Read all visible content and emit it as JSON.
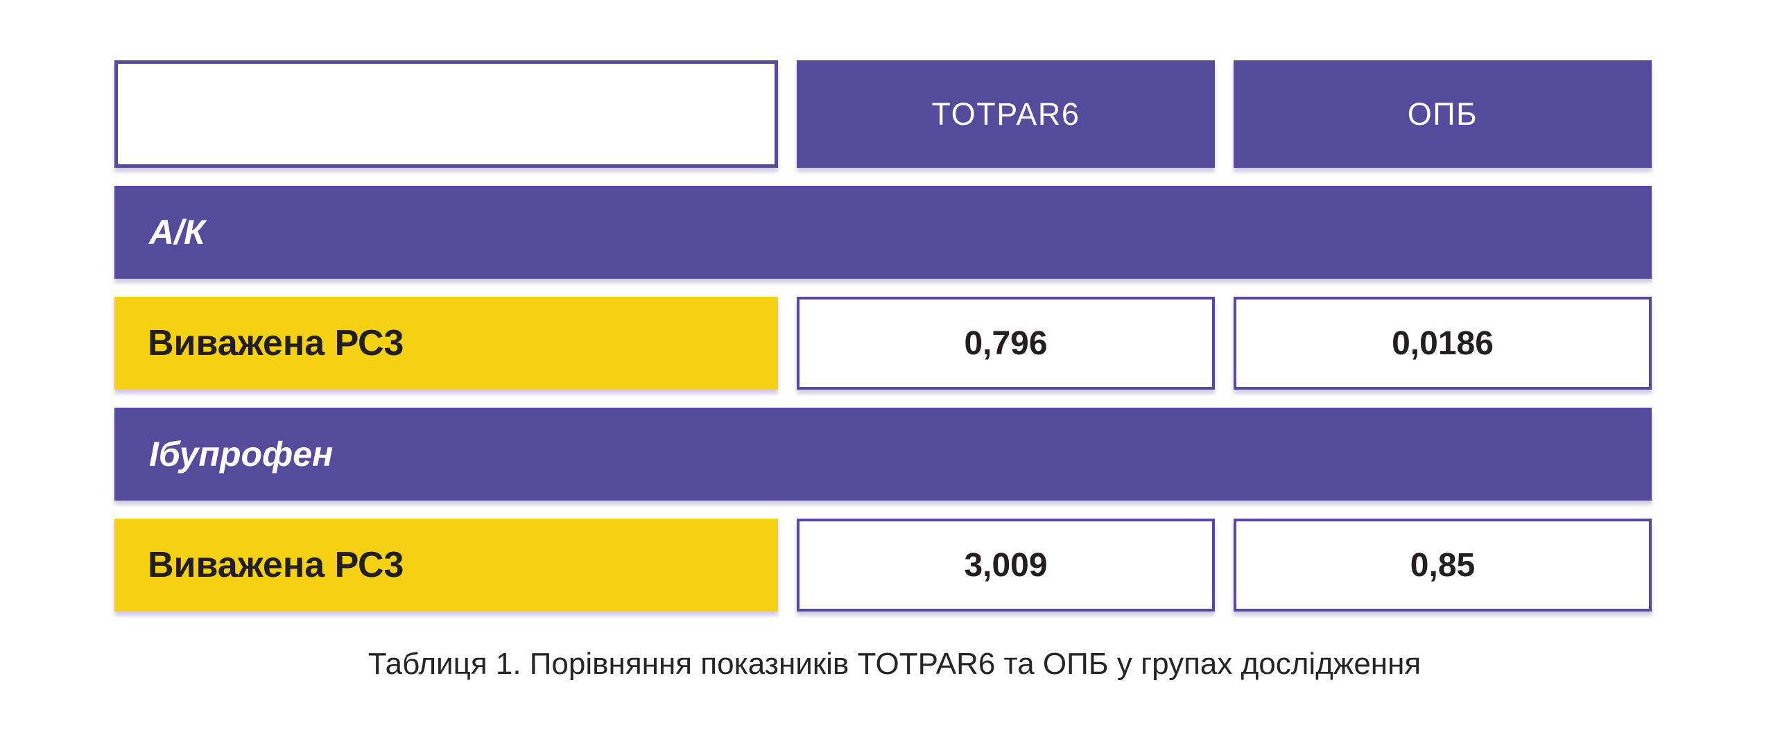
{
  "figure": {
    "column_headers": [
      "TOTPAR6",
      "ОПБ"
    ],
    "sections": [
      {
        "label": "А/К",
        "rows": [
          {
            "label": "Виважена РС3",
            "values": [
              "0,796",
              "0,0186"
            ]
          }
        ]
      },
      {
        "label": "Ібупрофен",
        "rows": [
          {
            "label": "Виважена РС3",
            "values": [
              "3,009",
              "0,85"
            ]
          }
        ]
      }
    ],
    "caption": "Таблиця 1. Порівняння показників TOTPAR6 та ОПБ у групах дослідження"
  },
  "colors": {
    "purple": "#564A9B",
    "yellow": "#F5D211",
    "value_text": "#231F20",
    "caption_text": "#262424",
    "cell_background": "#FFFFFF",
    "header_text": "#FFFFFF"
  },
  "chart_data": {
    "type": "table",
    "title": "Таблиця 1. Порівняння показників TOTPAR6 та ОПБ у групах дослідження",
    "columns": [
      "",
      "TOTPAR6",
      "ОПБ"
    ],
    "rows": [
      {
        "group": "А/К",
        "indicator": "Виважена РС3",
        "TOTPAR6": "0,796",
        "ОПБ": "0,0186"
      },
      {
        "group": "Ібупрофен",
        "indicator": "Виважена РС3",
        "TOTPAR6": "3,009",
        "ОПБ": "0,85"
      }
    ]
  }
}
